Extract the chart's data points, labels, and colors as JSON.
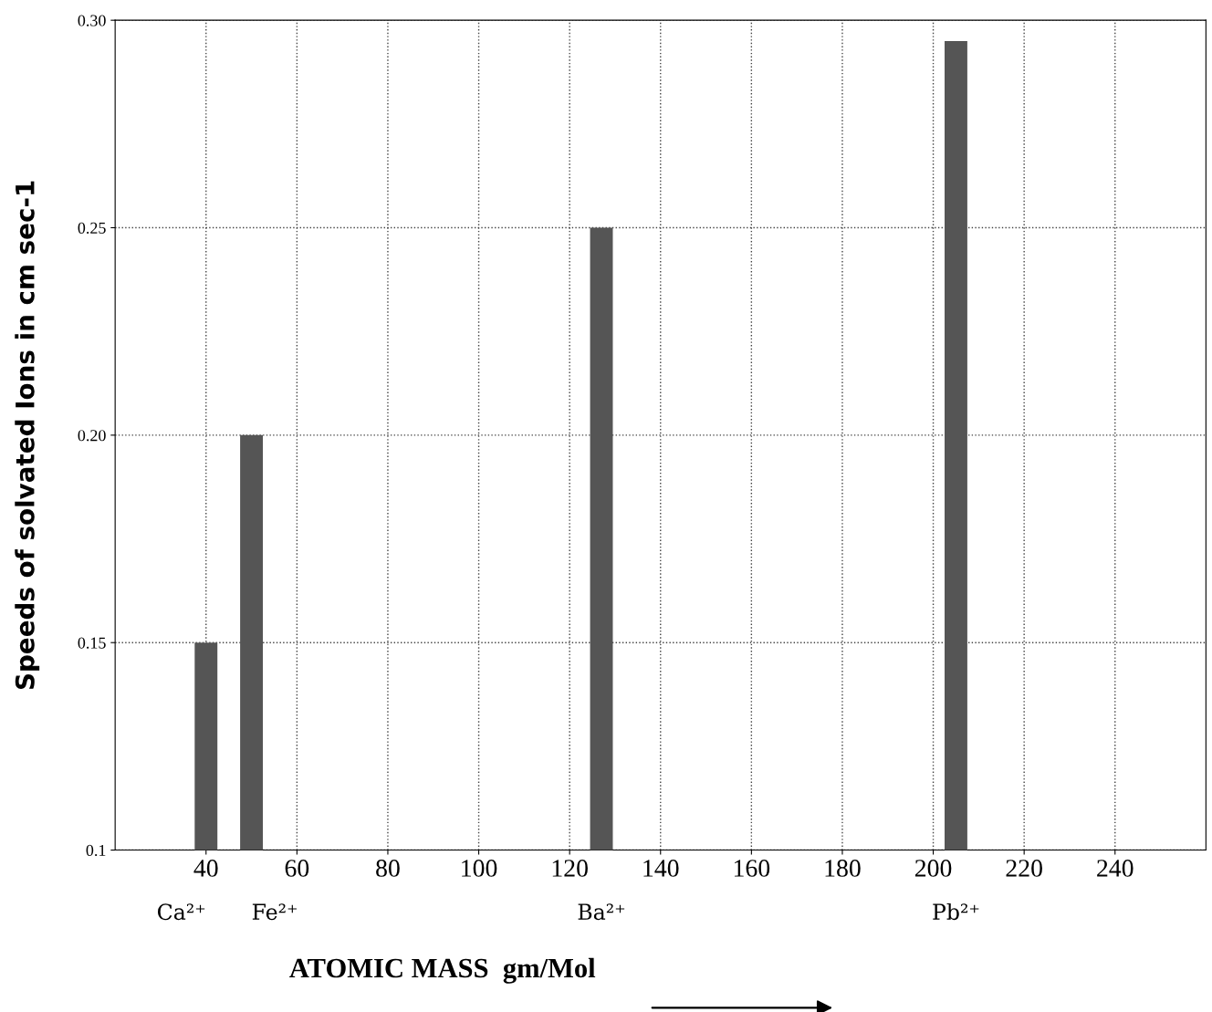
{
  "chart_data": {
    "type": "bar",
    "xlabel": "ATOMIC MASS  gm/Mol",
    "ylabel": "Speeds of solvated Ions in cm sec-1",
    "x": [
      40,
      50,
      127,
      205
    ],
    "values": [
      0.15,
      0.2,
      0.25,
      0.295
    ],
    "color": "#555555",
    "xlim": [
      20,
      260
    ],
    "xticks": [
      40,
      60,
      80,
      100,
      120,
      140,
      160,
      180,
      200,
      220,
      240
    ],
    "annotations": [
      "Ca²⁺",
      "Fe²⁺",
      "Ba²⁺",
      "Pb²⁺"
    ],
    "ylim": [
      0.1,
      0.3
    ],
    "yticks": [
      {
        "value": 0.1,
        "label": "0.1"
      },
      0.15,
      {
        "value": 0.2,
        "label": "0.20"
      },
      0.25,
      {
        "value": 0.3,
        "label": "0.30"
      }
    ],
    "grid": true
  }
}
